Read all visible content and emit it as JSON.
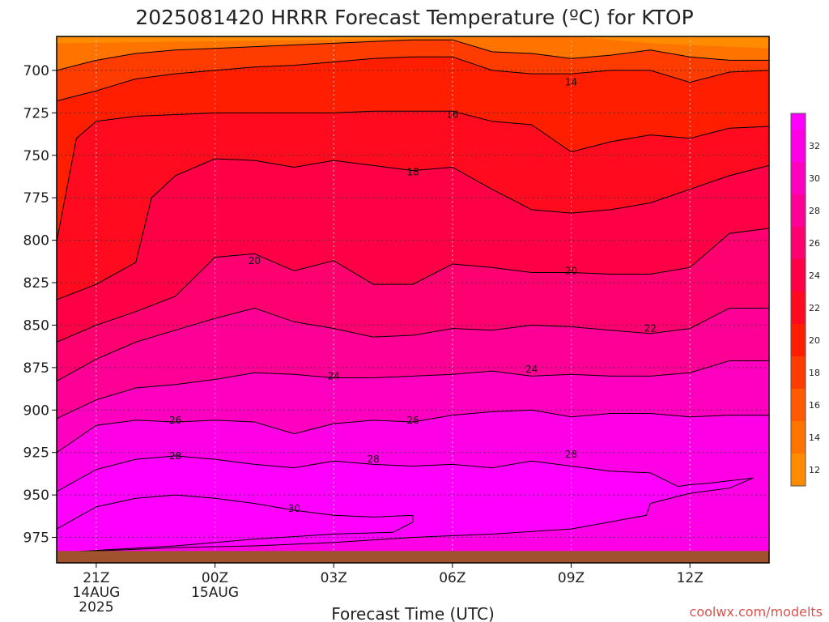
{
  "chart_data": {
    "type": "heatmap",
    "title": "2025081420 HRRR Forecast Temperature (ºC) for KTOP",
    "xlabel": "Forecast Time (UTC)",
    "ylabel": "",
    "credit": "coolwx.com/modelts",
    "y_axis": {
      "ticks": [
        700,
        725,
        750,
        775,
        800,
        825,
        850,
        875,
        900,
        925,
        950,
        975
      ],
      "range": [
        680,
        990
      ],
      "inverted": true
    },
    "x_axis": {
      "range_hours": [
        -1,
        17
      ],
      "ticks": [
        {
          "hour": 0,
          "label": "21Z",
          "date": "14AUG",
          "year": "2025"
        },
        {
          "hour": 3,
          "label": "00Z",
          "date": "15AUG",
          "year": ""
        },
        {
          "hour": 6,
          "label": "03Z",
          "date": "",
          "year": ""
        },
        {
          "hour": 9,
          "label": "06Z",
          "date": "",
          "year": ""
        },
        {
          "hour": 12,
          "label": "09Z",
          "date": "",
          "year": ""
        },
        {
          "hour": 15,
          "label": "12Z",
          "date": "",
          "year": ""
        }
      ]
    },
    "grid": true,
    "colorbar": {
      "ticks": [
        12,
        14,
        16,
        18,
        20,
        22,
        24,
        26,
        28,
        30,
        32
      ],
      "range": [
        11,
        34
      ],
      "colors": [
        "#ff8c00",
        "#ff7400",
        "#ff5a00",
        "#ff3c00",
        "#ff1e00",
        "#ff0a1e",
        "#ff0046",
        "#ff0070",
        "#ff0096",
        "#ff00c0",
        "#ff00e6",
        "#ff00ff"
      ]
    },
    "ground_pressure": 983,
    "contours": [
      {
        "level": 14,
        "label": "14",
        "points": [
          [
            -1,
            700
          ],
          [
            0,
            694
          ],
          [
            1,
            690
          ],
          [
            2,
            688
          ],
          [
            3,
            687
          ],
          [
            4,
            686
          ],
          [
            5,
            685
          ],
          [
            6,
            684
          ],
          [
            7,
            683
          ],
          [
            8,
            682
          ],
          [
            9,
            682
          ],
          [
            10,
            689
          ],
          [
            11,
            690
          ],
          [
            12,
            693
          ],
          [
            13,
            691
          ],
          [
            14,
            688
          ],
          [
            15,
            692
          ],
          [
            16,
            694
          ],
          [
            17,
            694
          ]
        ]
      },
      {
        "level": 16,
        "label": "16",
        "points": [
          [
            -1,
            718
          ],
          [
            0,
            712
          ],
          [
            1,
            705
          ],
          [
            2,
            702
          ],
          [
            3,
            700
          ],
          [
            4,
            698
          ],
          [
            5,
            697
          ],
          [
            6,
            695
          ],
          [
            7,
            693
          ],
          [
            8,
            692
          ],
          [
            9,
            692
          ],
          [
            10,
            700
          ],
          [
            11,
            702
          ],
          [
            12,
            702
          ],
          [
            13,
            700
          ],
          [
            14,
            700
          ],
          [
            15,
            707
          ],
          [
            16,
            701
          ],
          [
            17,
            700
          ]
        ]
      },
      {
        "level": 18,
        "label": "18",
        "points": [
          [
            -1,
            801
          ],
          [
            -0.5,
            740
          ],
          [
            0,
            730
          ],
          [
            1,
            727
          ],
          [
            2,
            726
          ],
          [
            3,
            725
          ],
          [
            4,
            725
          ],
          [
            5,
            725
          ],
          [
            6,
            725
          ],
          [
            7,
            724
          ],
          [
            8,
            724
          ],
          [
            9,
            724
          ],
          [
            10,
            730
          ],
          [
            11,
            732
          ],
          [
            12,
            748
          ],
          [
            13,
            742
          ],
          [
            14,
            738
          ],
          [
            15,
            740
          ],
          [
            16,
            734
          ],
          [
            17,
            733
          ]
        ]
      },
      {
        "level": 20,
        "label": "20",
        "points": [
          [
            -1,
            835
          ],
          [
            0,
            826
          ],
          [
            1,
            813
          ],
          [
            1.4,
            775
          ],
          [
            2,
            762
          ],
          [
            3,
            752
          ],
          [
            4,
            753
          ],
          [
            5,
            757
          ],
          [
            6,
            753
          ],
          [
            7,
            756
          ],
          [
            8,
            759
          ],
          [
            9,
            757
          ],
          [
            10,
            770
          ],
          [
            11,
            782
          ],
          [
            12,
            784
          ],
          [
            13,
            782
          ],
          [
            14,
            778
          ],
          [
            15,
            770
          ],
          [
            16,
            762
          ],
          [
            17,
            756
          ]
        ]
      },
      {
        "level": 22,
        "label": "22",
        "points": [
          [
            -1,
            860
          ],
          [
            0,
            850
          ],
          [
            1,
            842
          ],
          [
            2,
            833
          ],
          [
            3,
            810
          ],
          [
            4,
            808
          ],
          [
            5,
            818
          ],
          [
            6,
            812
          ],
          [
            7,
            826
          ],
          [
            8,
            826
          ],
          [
            9,
            814
          ],
          [
            10,
            816
          ],
          [
            11,
            819
          ],
          [
            12,
            819
          ],
          [
            13,
            820
          ],
          [
            14,
            820
          ],
          [
            15,
            816
          ],
          [
            16,
            796
          ],
          [
            17,
            793
          ]
        ]
      },
      {
        "level": 24,
        "label": "24",
        "points": [
          [
            -1,
            883
          ],
          [
            0,
            870
          ],
          [
            1,
            860
          ],
          [
            2,
            853
          ],
          [
            3,
            846
          ],
          [
            4,
            840
          ],
          [
            5,
            848
          ],
          [
            6,
            852
          ],
          [
            7,
            857
          ],
          [
            8,
            856
          ],
          [
            9,
            852
          ],
          [
            10,
            853
          ],
          [
            11,
            850
          ],
          [
            12,
            851
          ],
          [
            13,
            853
          ],
          [
            14,
            855
          ],
          [
            15,
            852
          ],
          [
            16,
            840
          ],
          [
            17,
            840
          ]
        ]
      },
      {
        "level": 26,
        "label": "26",
        "points": [
          [
            -1,
            905
          ],
          [
            0,
            894
          ],
          [
            1,
            887
          ],
          [
            2,
            885
          ],
          [
            3,
            882
          ],
          [
            4,
            878
          ],
          [
            5,
            879
          ],
          [
            6,
            881
          ],
          [
            7,
            881
          ],
          [
            8,
            880
          ],
          [
            9,
            879
          ],
          [
            10,
            877
          ],
          [
            11,
            880
          ],
          [
            12,
            879
          ],
          [
            13,
            880
          ],
          [
            14,
            880
          ],
          [
            15,
            878
          ],
          [
            16,
            871
          ],
          [
            17,
            871
          ]
        ]
      },
      {
        "level": 28,
        "label": "28",
        "points": [
          [
            -1,
            925
          ],
          [
            0,
            909
          ],
          [
            1,
            906
          ],
          [
            2,
            907
          ],
          [
            3,
            906
          ],
          [
            4,
            907
          ],
          [
            5,
            914
          ],
          [
            6,
            908
          ],
          [
            7,
            906
          ],
          [
            8,
            907
          ],
          [
            9,
            903
          ],
          [
            10,
            901
          ],
          [
            11,
            900
          ],
          [
            12,
            904
          ],
          [
            13,
            902
          ],
          [
            14,
            902
          ],
          [
            15,
            904
          ],
          [
            16,
            903
          ],
          [
            17,
            903
          ]
        ]
      },
      {
        "level": 30,
        "label": "30",
        "points": [
          [
            -1,
            948
          ],
          [
            0,
            935
          ],
          [
            1,
            929
          ],
          [
            2,
            927
          ],
          [
            3,
            929
          ],
          [
            4,
            932
          ],
          [
            5,
            934
          ],
          [
            6,
            930
          ],
          [
            7,
            932
          ],
          [
            8,
            933
          ],
          [
            9,
            932
          ],
          [
            10,
            934
          ],
          [
            11,
            930
          ],
          [
            12,
            933
          ],
          [
            13,
            936
          ],
          [
            14,
            937
          ],
          [
            14.7,
            945
          ],
          [
            15,
            944
          ],
          [
            15.5,
            943
          ],
          [
            16.6,
            940
          ],
          [
            16,
            946
          ],
          [
            15,
            949
          ],
          [
            14,
            955
          ],
          [
            13.9,
            962
          ],
          [
            12,
            970
          ],
          [
            10,
            973
          ],
          [
            8,
            975
          ],
          [
            6,
            978
          ],
          [
            4,
            980
          ],
          [
            2,
            981
          ],
          [
            -1,
            984
          ]
        ]
      },
      {
        "level": 32,
        "label": "",
        "points": [
          [
            -1,
            970
          ],
          [
            0,
            957
          ],
          [
            1,
            952
          ],
          [
            2,
            950
          ],
          [
            3,
            952
          ],
          [
            4,
            955
          ],
          [
            5,
            959
          ],
          [
            6,
            962
          ],
          [
            7,
            963
          ],
          [
            8,
            962
          ],
          [
            8,
            966
          ],
          [
            7.5,
            972
          ],
          [
            6,
            973
          ],
          [
            4,
            976
          ],
          [
            2,
            980
          ],
          [
            -1,
            984
          ]
        ]
      }
    ],
    "contour_labels": [
      {
        "text": "14",
        "hour": 12,
        "pressure": 707
      },
      {
        "text": "16",
        "hour": 9,
        "pressure": 726
      },
      {
        "text": "18",
        "hour": 8,
        "pressure": 760
      },
      {
        "text": "20",
        "hour": 4,
        "pressure": 812
      },
      {
        "text": "20",
        "hour": 12,
        "pressure": 818
      },
      {
        "text": "22",
        "hour": 14,
        "pressure": 852
      },
      {
        "text": "24",
        "hour": 6,
        "pressure": 880
      },
      {
        "text": "24",
        "hour": 11,
        "pressure": 876
      },
      {
        "text": "26",
        "hour": 2,
        "pressure": 906
      },
      {
        "text": "26",
        "hour": 8,
        "pressure": 906
      },
      {
        "text": "28",
        "hour": 2,
        "pressure": 927
      },
      {
        "text": "28",
        "hour": 7,
        "pressure": 929
      },
      {
        "text": "28",
        "hour": 12,
        "pressure": 926
      },
      {
        "text": "30",
        "hour": 5,
        "pressure": 958
      }
    ]
  }
}
